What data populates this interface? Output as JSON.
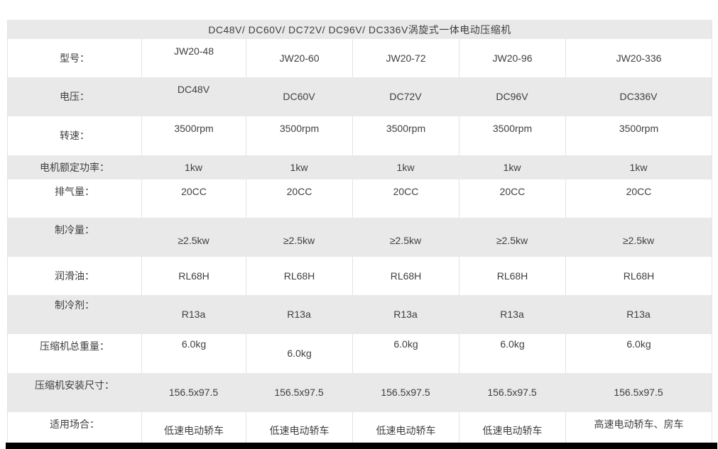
{
  "table": {
    "title": "DC48V/ DC60V/ DC72V/ DC96V/ DC336V涡旋式一体电动压缩机",
    "rows": [
      {
        "label": "型号：",
        "values": [
          "JW20-48",
          "JW20-60",
          "JW20-72",
          "JW20-96",
          "JW20-336"
        ]
      },
      {
        "label": "电压：",
        "values": [
          "DC48V",
          "DC60V",
          "DC72V",
          "DC96V",
          "DC336V"
        ]
      },
      {
        "label": "转速：",
        "values": [
          "3500rpm",
          "3500rpm",
          "3500rpm",
          "3500rpm",
          "3500rpm"
        ]
      },
      {
        "label": "电机额定功率：",
        "values": [
          "1kw",
          "1kw",
          "1kw",
          "1kw",
          "1kw"
        ]
      },
      {
        "label": "排气量：",
        "values": [
          "20CC",
          "20CC",
          "20CC",
          "20CC",
          "20CC"
        ]
      },
      {
        "label": "制冷量：",
        "values": [
          "≥2.5kw",
          "≥2.5kw",
          "≥2.5kw",
          "≥2.5kw",
          "≥2.5kw"
        ]
      },
      {
        "label": "润滑油：",
        "values": [
          "RL68H",
          "RL68H",
          "RL68H",
          "RL68H",
          "RL68H"
        ]
      },
      {
        "label": "制冷剂：",
        "values": [
          "R13a",
          "R13a",
          "R13a",
          "R13a",
          "R13a"
        ]
      },
      {
        "label": "压缩机总重量：",
        "values": [
          "6.0kg",
          "6.0kg",
          "6.0kg",
          "6.0kg",
          "6.0kg"
        ]
      },
      {
        "label": "压缩机安装尺寸：",
        "values": [
          "156.5x97.5",
          "156.5x97.5",
          "156.5x97.5",
          "156.5x97.5",
          "156.5x97.5"
        ]
      },
      {
        "label": "适用场合：",
        "values": [
          "低速电动轿车",
          "低速电动轿车",
          "低速电动轿车",
          "低速电动轿车",
          "高速电动轿车、房车"
        ]
      }
    ],
    "colors": {
      "row_alt_bg": "#e9e9e9",
      "text": "#3f3f3f",
      "border": "#e3e3e3",
      "footer_bar": "#000000"
    }
  }
}
